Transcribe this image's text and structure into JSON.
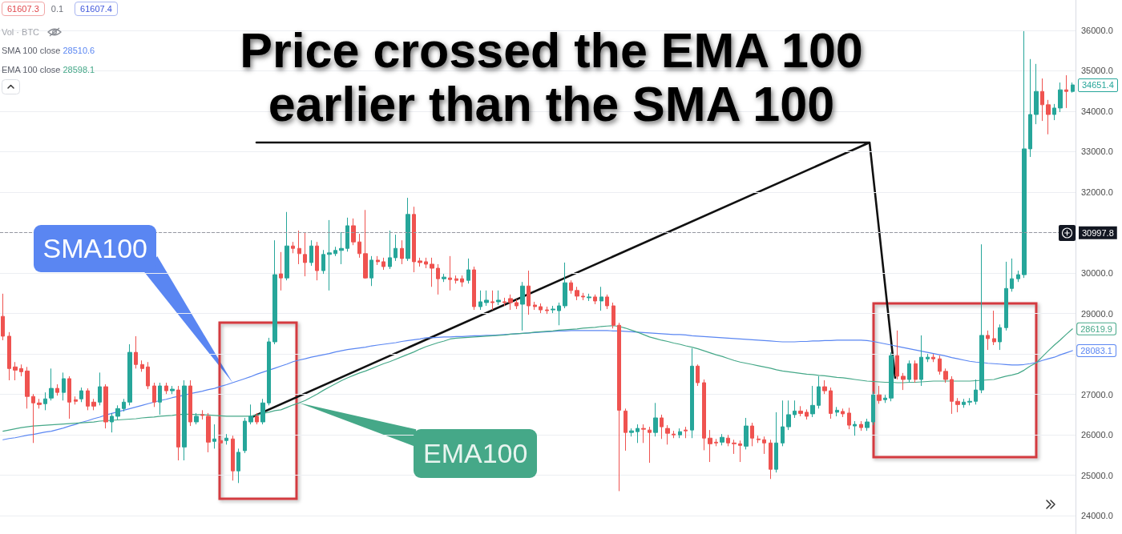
{
  "chart_data": {
    "type": "candlestick",
    "title": "Price crossed the EMA 100 earlier than the SMA 100",
    "categories": [
      null,
      null,
      null,
      null,
      null,
      null,
      null,
      null,
      null,
      null,
      null,
      null,
      null,
      null,
      null,
      null,
      null,
      null,
      null,
      null,
      null,
      null,
      null,
      null,
      null,
      null,
      null,
      null,
      null,
      null,
      null,
      null,
      null,
      null,
      null,
      null,
      null,
      null,
      null,
      null,
      null,
      null,
      null,
      null,
      null,
      null,
      null,
      null,
      null,
      null,
      null,
      null,
      null,
      null,
      null,
      null,
      null,
      null,
      null,
      null,
      null,
      null,
      null,
      null,
      null,
      null,
      null,
      null,
      null,
      null,
      null,
      null,
      null,
      null,
      null,
      null,
      null,
      null,
      null,
      null,
      null,
      null,
      null,
      null,
      null,
      null,
      null,
      null,
      null,
      null,
      null,
      null,
      null,
      null,
      null,
      null,
      null,
      null,
      null,
      null,
      null,
      null,
      null,
      null,
      null,
      null,
      null,
      null,
      null,
      null,
      null,
      null,
      null,
      null,
      null,
      null,
      null,
      null,
      null,
      null,
      null,
      null,
      null,
      null,
      null,
      null,
      null,
      null,
      null,
      null,
      null,
      null,
      null,
      null,
      null,
      null,
      null,
      null,
      null,
      null,
      null,
      null,
      null,
      null,
      null,
      null,
      null,
      null,
      null,
      null,
      null,
      null,
      null,
      null,
      null,
      null,
      null,
      null,
      null,
      null,
      null,
      null,
      null,
      null,
      null,
      null,
      null,
      null,
      null,
      null,
      null,
      null,
      null,
      null,
      null,
      null,
      null,
      null
    ],
    "series": [
      {
        "ohlc": [
          [
            28930,
            29490,
            28340,
            28440
          ],
          [
            28440,
            28540,
            27350,
            27640
          ],
          [
            27680,
            27800,
            27350,
            27600
          ],
          [
            27640,
            27740,
            27450,
            27560
          ],
          [
            27580,
            27680,
            26650,
            26950
          ],
          [
            26950,
            27010,
            25800,
            26790
          ],
          [
            26790,
            26890,
            26650,
            26750
          ],
          [
            26770,
            27050,
            26610,
            26890
          ],
          [
            26910,
            27640,
            26850,
            27150
          ],
          [
            27150,
            27250,
            26970,
            27050
          ],
          [
            27050,
            27540,
            26850,
            27390
          ],
          [
            27390,
            27450,
            26400,
            26810
          ],
          [
            26870,
            26950,
            26750,
            26830
          ],
          [
            26890,
            27170,
            26810,
            27090
          ],
          [
            27090,
            27150,
            26610,
            26710
          ],
          [
            26810,
            26890,
            26610,
            26710
          ],
          [
            26810,
            27540,
            26730,
            27190
          ],
          [
            27190,
            27250,
            26160,
            26320
          ],
          [
            26320,
            26540,
            26060,
            26460
          ],
          [
            26460,
            26730,
            26380,
            26650
          ],
          [
            26650,
            26890,
            26580,
            26810
          ],
          [
            26810,
            28240,
            26730,
            28040
          ],
          [
            28040,
            28440,
            27640,
            27740
          ],
          [
            27740,
            27840,
            27560,
            27640
          ],
          [
            27680,
            27800,
            27130,
            27210
          ],
          [
            27210,
            27290,
            26690,
            26810
          ],
          [
            26810,
            27290,
            26500,
            27210
          ],
          [
            27210,
            27290,
            27010,
            27090
          ],
          [
            27090,
            27210,
            27010,
            27130
          ],
          [
            27110,
            27210,
            25370,
            25700
          ],
          [
            25700,
            27350,
            25370,
            27210
          ],
          [
            27210,
            27350,
            26220,
            26320
          ],
          [
            26320,
            26540,
            26260,
            26460
          ],
          [
            26500,
            26610,
            26380,
            26480
          ],
          [
            26460,
            26540,
            25570,
            25820
          ],
          [
            25840,
            26260,
            25660,
            25900
          ],
          [
            25860,
            25940,
            25660,
            25800
          ],
          [
            25860,
            26020,
            25760,
            25920
          ],
          [
            25900,
            25980,
            24870,
            25110
          ],
          [
            25110,
            25660,
            24810,
            25570
          ],
          [
            25610,
            26420,
            25550,
            26340
          ],
          [
            26320,
            26750,
            26260,
            26460
          ],
          [
            26460,
            26540,
            26260,
            26320
          ],
          [
            26320,
            26890,
            26260,
            26790
          ],
          [
            26790,
            28400,
            26730,
            28300
          ],
          [
            28300,
            30810,
            28240,
            29960
          ],
          [
            29980,
            30520,
            29570,
            29880
          ],
          [
            29880,
            31510,
            29820,
            30670
          ],
          [
            30670,
            30770,
            30490,
            30610
          ],
          [
            30610,
            31050,
            30220,
            30480
          ],
          [
            30460,
            31010,
            29920,
            30260
          ],
          [
            30260,
            30810,
            30180,
            30670
          ],
          [
            30670,
            30770,
            29820,
            30060
          ],
          [
            30060,
            30570,
            29980,
            30460
          ],
          [
            30460,
            31310,
            29570,
            30500
          ],
          [
            30480,
            30650,
            30420,
            30560
          ],
          [
            30560,
            31010,
            30220,
            30610
          ],
          [
            30610,
            31370,
            30530,
            31170
          ],
          [
            31170,
            31350,
            30690,
            30770
          ],
          [
            30770,
            30970,
            30380,
            30480
          ],
          [
            30480,
            31560,
            29860,
            29880
          ],
          [
            29880,
            30420,
            29680,
            30320
          ],
          [
            30320,
            30420,
            30200,
            30280
          ],
          [
            30280,
            30380,
            30080,
            30160
          ],
          [
            30160,
            31050,
            30100,
            30380
          ],
          [
            30380,
            30950,
            30300,
            30610
          ],
          [
            30610,
            30810,
            30220,
            30360
          ],
          [
            30360,
            31860,
            30300,
            31450
          ],
          [
            31450,
            31640,
            30020,
            30280
          ],
          [
            30300,
            30380,
            30160,
            30260
          ],
          [
            30280,
            30380,
            30120,
            30220
          ],
          [
            30220,
            30380,
            29660,
            30120
          ],
          [
            30120,
            30220,
            29470,
            29860
          ],
          [
            29860,
            29980,
            29780,
            29900
          ],
          [
            29880,
            30420,
            29570,
            29840
          ],
          [
            29860,
            29940,
            29740,
            29820
          ],
          [
            29860,
            29940,
            29660,
            29780
          ],
          [
            29820,
            30360,
            29740,
            30080
          ],
          [
            30080,
            30160,
            29090,
            29170
          ],
          [
            29170,
            29570,
            29090,
            29290
          ],
          [
            29270,
            29570,
            29190,
            29330
          ],
          [
            29290,
            29570,
            29090,
            29270
          ],
          [
            29290,
            29570,
            29210,
            29330
          ],
          [
            29290,
            29390,
            29190,
            29270
          ],
          [
            29370,
            29470,
            29090,
            29270
          ],
          [
            29270,
            29350,
            29110,
            29190
          ],
          [
            29230,
            29780,
            28580,
            29680
          ],
          [
            29680,
            30060,
            28970,
            29190
          ],
          [
            29210,
            29290,
            29090,
            29170
          ],
          [
            29170,
            29250,
            29010,
            29090
          ],
          [
            29090,
            29170,
            28990,
            29070
          ],
          [
            29090,
            29190,
            29010,
            29110
          ],
          [
            29070,
            29270,
            28710,
            29190
          ],
          [
            29190,
            30260,
            29130,
            29760
          ],
          [
            29760,
            29820,
            29490,
            29570
          ],
          [
            29570,
            29660,
            29330,
            29430
          ],
          [
            29430,
            29510,
            29330,
            29410
          ],
          [
            29390,
            29490,
            29310,
            29410
          ],
          [
            29410,
            29470,
            29230,
            29310
          ],
          [
            29310,
            29660,
            29070,
            29410
          ],
          [
            29410,
            29470,
            29110,
            29190
          ],
          [
            29190,
            29270,
            28630,
            28710
          ],
          [
            28710,
            28770,
            24610,
            26610
          ],
          [
            26590,
            26650,
            25610,
            26060
          ],
          [
            26060,
            26160,
            25960,
            26100
          ],
          [
            26080,
            26260,
            25800,
            26160
          ],
          [
            26160,
            26260,
            25800,
            26140
          ],
          [
            26120,
            26200,
            25310,
            26060
          ],
          [
            26060,
            26790,
            25960,
            26420
          ],
          [
            26420,
            26500,
            25900,
            26200
          ],
          [
            26160,
            26240,
            25760,
            26040
          ],
          [
            26020,
            26100,
            25920,
            26000
          ],
          [
            26000,
            26160,
            25920,
            26080
          ],
          [
            26120,
            26200,
            25920,
            26100
          ],
          [
            26120,
            28140,
            25920,
            27700
          ],
          [
            27700,
            27740,
            27210,
            27290
          ],
          [
            27290,
            27370,
            25620,
            25920
          ],
          [
            25920,
            26120,
            25330,
            25780
          ],
          [
            25820,
            25900,
            25720,
            25800
          ],
          [
            25820,
            26020,
            25740,
            25940
          ],
          [
            25920,
            26000,
            25720,
            25800
          ],
          [
            25800,
            25880,
            25530,
            25780
          ],
          [
            25780,
            25860,
            25330,
            25740
          ],
          [
            25720,
            26420,
            25640,
            26220
          ],
          [
            26220,
            26300,
            25720,
            25920
          ],
          [
            25900,
            25980,
            25800,
            25880
          ],
          [
            25880,
            25960,
            25530,
            25800
          ],
          [
            25800,
            25880,
            24910,
            25150
          ],
          [
            25150,
            26560,
            25070,
            25800
          ],
          [
            25800,
            26850,
            25720,
            26200
          ],
          [
            26200,
            26850,
            26120,
            26500
          ],
          [
            26500,
            26850,
            26420,
            26590
          ],
          [
            26590,
            26710,
            26460,
            26530
          ],
          [
            26560,
            26630,
            26380,
            26460
          ],
          [
            26520,
            27210,
            26440,
            26730
          ],
          [
            26730,
            27450,
            26650,
            27190
          ],
          [
            27190,
            27350,
            27010,
            27090
          ],
          [
            27090,
            27170,
            26400,
            26530
          ],
          [
            26560,
            26690,
            26460,
            26610
          ],
          [
            26580,
            26650,
            26440,
            26520
          ],
          [
            26540,
            26670,
            26140,
            26240
          ],
          [
            26220,
            26340,
            25980,
            26260
          ],
          [
            26260,
            26340,
            26100,
            26180
          ],
          [
            26180,
            26400,
            26100,
            26320
          ],
          [
            26320,
            27070,
            26240,
            26990
          ],
          [
            26990,
            27210,
            26770,
            26850
          ],
          [
            26870,
            26990,
            26790,
            26910
          ],
          [
            26910,
            28040,
            26830,
            27960
          ],
          [
            27960,
            28580,
            27370,
            27450
          ],
          [
            27450,
            27530,
            27110,
            27370
          ],
          [
            27370,
            27840,
            27290,
            27760
          ],
          [
            27760,
            27840,
            27290,
            27370
          ],
          [
            27370,
            28460,
            27210,
            27920
          ],
          [
            27880,
            28000,
            27800,
            27920
          ],
          [
            27920,
            28000,
            27800,
            27880
          ],
          [
            27880,
            27960,
            27490,
            27570
          ],
          [
            27570,
            27640,
            27290,
            27370
          ],
          [
            27370,
            27450,
            26520,
            26830
          ],
          [
            26830,
            26910,
            26560,
            26750
          ],
          [
            26750,
            26890,
            26670,
            26810
          ],
          [
            26810,
            26910,
            26730,
            26830
          ],
          [
            26830,
            27370,
            26750,
            27110
          ],
          [
            27110,
            30710,
            27030,
            28460
          ],
          [
            28460,
            28580,
            28100,
            28380
          ],
          [
            28380,
            29070,
            28220,
            28300
          ],
          [
            28300,
            28730,
            28100,
            28650
          ],
          [
            28650,
            30280,
            28580,
            29620
          ],
          [
            29620,
            30360,
            29540,
            29860
          ],
          [
            29860,
            30060,
            29780,
            29960
          ],
          [
            29960,
            35980,
            29880,
            33070
          ],
          [
            33070,
            35290,
            32870,
            33920
          ],
          [
            33920,
            35170,
            33680,
            34490
          ],
          [
            34490,
            34810,
            33760,
            34160
          ],
          [
            34160,
            34280,
            33430,
            33920
          ],
          [
            33920,
            34180,
            33780,
            34080
          ],
          [
            34080,
            34710,
            33980,
            34530
          ],
          [
            34530,
            34890,
            34080,
            34490
          ],
          [
            34490,
            34710,
            34460,
            34651.4
          ]
        ],
        "colors": [
          "#ef5350",
          "#ef5350",
          "#ef5350",
          "#ef5350",
          "#ef5350",
          "#ef5350",
          "#ef5350",
          "#26a69a",
          "#26a69a",
          "#ef5350",
          "#26a69a",
          "#ef5350",
          "#ef5350",
          "#26a69a",
          "#ef5350",
          "#ef5350",
          "#26a69a",
          "#ef5350",
          "#26a69a",
          "#26a69a",
          "#26a69a",
          "#26a69a",
          "#ef5350",
          "#ef5350",
          "#ef5350",
          "#ef5350",
          "#26a69a",
          "#ef5350",
          "#26a69a",
          "#ef5350",
          "#26a69a",
          "#ef5350",
          "#26a69a",
          "#ef5350",
          "#ef5350",
          "#26a69a",
          "#ef5350",
          "#26a69a",
          "#ef5350",
          "#26a69a",
          "#26a69a",
          "#26a69a",
          "#ef5350",
          "#26a69a",
          "#26a69a",
          "#26a69a",
          "#ef5350",
          "#26a69a",
          "#ef5350",
          "#ef5350",
          "#ef5350",
          "#26a69a",
          "#ef5350",
          "#26a69a",
          "#26a69a",
          "#26a69a",
          "#26a69a",
          "#26a69a",
          "#ef5350",
          "#ef5350",
          "#ef5350",
          "#26a69a",
          "#ef5350",
          "#ef5350",
          "#26a69a",
          "#26a69a",
          "#ef5350",
          "#26a69a",
          "#ef5350",
          "#ef5350",
          "#ef5350",
          "#ef5350",
          "#ef5350",
          "#26a69a",
          "#ef5350",
          "#ef5350",
          "#ef5350",
          "#26a69a",
          "#ef5350",
          "#26a69a",
          "#26a69a",
          "#ef5350",
          "#26a69a",
          "#ef5350",
          "#ef5350",
          "#ef5350",
          "#26a69a",
          "#ef5350",
          "#ef5350",
          "#ef5350",
          "#ef5350",
          "#26a69a",
          "#26a69a",
          "#26a69a",
          "#ef5350",
          "#ef5350",
          "#ef5350",
          "#26a69a",
          "#ef5350",
          "#26a69a",
          "#ef5350",
          "#ef5350",
          "#ef5350",
          "#ef5350",
          "#26a69a",
          "#26a69a",
          "#ef5350",
          "#ef5350",
          "#26a69a",
          "#ef5350",
          "#ef5350",
          "#ef5350",
          "#26a69a",
          "#ef5350",
          "#26a69a",
          "#ef5350",
          "#ef5350",
          "#ef5350",
          "#ef5350",
          "#26a69a",
          "#ef5350",
          "#ef5350",
          "#ef5350",
          "#26a69a",
          "#ef5350",
          "#ef5350",
          "#ef5350",
          "#ef5350",
          "#26a69a",
          "#26a69a",
          "#26a69a",
          "#26a69a",
          "#ef5350",
          "#ef5350",
          "#26a69a",
          "#26a69a",
          "#ef5350",
          "#ef5350",
          "#26a69a",
          "#ef5350",
          "#ef5350",
          "#26a69a",
          "#ef5350",
          "#26a69a",
          "#26a69a",
          "#ef5350",
          "#26a69a",
          "#26a69a",
          "#ef5350",
          "#ef5350",
          "#26a69a",
          "#ef5350",
          "#26a69a",
          "#26a69a",
          "#ef5350",
          "#ef5350",
          "#ef5350",
          "#ef5350",
          "#ef5350",
          "#26a69a",
          "#26a69a",
          "#26a69a",
          "#26a69a",
          "#ef5350",
          "#ef5350",
          "#26a69a",
          "#26a69a",
          "#26a69a",
          "#26a69a",
          "#26a69a",
          "#26a69a",
          "#26a69a",
          "#ef5350",
          "#ef5350",
          "#26a69a",
          "#26a69a",
          "#ef5350",
          "#26a69a"
        ]
      },
      {
        "type": "line",
        "name": "SMA100",
        "color": "#5a86f2",
        "values": [
          25880,
          25910,
          25930,
          25960,
          25990,
          26010,
          26040,
          26070,
          26090,
          26130,
          26170,
          26220,
          26260,
          26310,
          26350,
          26400,
          26440,
          26490,
          26530,
          26570,
          26610,
          26650,
          26690,
          26730,
          26770,
          26810,
          26850,
          26880,
          26920,
          26950,
          26980,
          27020,
          27050,
          27080,
          27120,
          27150,
          27200,
          27240,
          27290,
          27340,
          27390,
          27440,
          27500,
          27550,
          27600,
          27650,
          27700,
          27750,
          27810,
          27850,
          27880,
          27920,
          27950,
          27980,
          28010,
          28050,
          28080,
          28110,
          28130,
          28150,
          28170,
          28200,
          28220,
          28240,
          28260,
          28280,
          28310,
          28330,
          28350,
          28370,
          28400,
          28400,
          28410,
          28420,
          28420,
          28430,
          28430,
          28440,
          28450,
          28450,
          28460,
          28460,
          28470,
          28480,
          28490,
          28500,
          28510,
          28520,
          28530,
          28540,
          28550,
          28560,
          28570,
          28570,
          28580,
          28580,
          28580,
          28580,
          28580,
          28580,
          28580,
          28570,
          28570,
          28560,
          28550,
          28540,
          28530,
          28520,
          28510,
          28500,
          28490,
          28480,
          28480,
          28470,
          28450,
          28440,
          28430,
          28420,
          28410,
          28400,
          28390,
          28380,
          28370,
          28360,
          28350,
          28340,
          28330,
          28320,
          28310,
          28300,
          28300,
          28300,
          28310,
          28310,
          28320,
          28320,
          28330,
          28330,
          28340,
          28340,
          28340,
          28340,
          28340,
          28330,
          28310,
          28280,
          28250,
          28220,
          28190,
          28160,
          28130,
          28100,
          28070,
          28040,
          28010,
          27980,
          27950,
          27910,
          27880,
          27850,
          27820,
          27800,
          27790,
          27770,
          27760,
          27750,
          27740,
          27730,
          27730,
          27740,
          27760,
          27790,
          27840,
          27880,
          27920,
          27980,
          28030,
          28083.1
        ],
        "value_labels": [
          null,
          null,
          null,
          null,
          null,
          null,
          null,
          null,
          null,
          null,
          null,
          null,
          null,
          null,
          null,
          null,
          null,
          null,
          null,
          null,
          null,
          null,
          null,
          null,
          null,
          null,
          null,
          null,
          null,
          null,
          null,
          null,
          null,
          null,
          null,
          null,
          null,
          null,
          null,
          null,
          null,
          null,
          null,
          null,
          null,
          null,
          null,
          null,
          null,
          null,
          null,
          null,
          null,
          null,
          null,
          null,
          null,
          null,
          null,
          null,
          null,
          null,
          null,
          null,
          null,
          null,
          null,
          null,
          null,
          null,
          null,
          null,
          null,
          null,
          null,
          null,
          null,
          null,
          null,
          null,
          null,
          null,
          null,
          null,
          null,
          null,
          null,
          null,
          null,
          null,
          null,
          null,
          null,
          null,
          null,
          null,
          null,
          null,
          null,
          null,
          null,
          null,
          null,
          null,
          null,
          null,
          null,
          null,
          null,
          null,
          null,
          null,
          null,
          null,
          null,
          null,
          null,
          null,
          null,
          null,
          null,
          null,
          null,
          null,
          null,
          null,
          null,
          null,
          null,
          null,
          null,
          null,
          null,
          null,
          null,
          null,
          null,
          null,
          null,
          null,
          null,
          null,
          null,
          null,
          null,
          null,
          null,
          null,
          null,
          null,
          null,
          null,
          null,
          null,
          null,
          null,
          null,
          null,
          null,
          null,
          null,
          null,
          null,
          null,
          null,
          null,
          null,
          null,
          null,
          null,
          null,
          null,
          null,
          null,
          null,
          null,
          null,
          "28083.1"
        ]
      },
      {
        "type": "line",
        "name": "EMA100",
        "color": "#45a888",
        "values": [
          26090,
          26120,
          26150,
          26180,
          26200,
          26220,
          26230,
          26240,
          26250,
          26260,
          26270,
          26280,
          26290,
          26300,
          26310,
          26320,
          26340,
          26350,
          26360,
          26370,
          26380,
          26390,
          26400,
          26420,
          26430,
          26440,
          26460,
          26470,
          26480,
          26500,
          26510,
          26510,
          26500,
          26500,
          26490,
          26480,
          26470,
          26460,
          26460,
          26460,
          26460,
          26460,
          26490,
          26530,
          26560,
          26600,
          26620,
          26680,
          26740,
          26790,
          26850,
          26930,
          27010,
          27100,
          27180,
          27260,
          27340,
          27410,
          27470,
          27530,
          27580,
          27640,
          27700,
          27760,
          27810,
          27870,
          27930,
          27990,
          28050,
          28120,
          28180,
          28230,
          28280,
          28320,
          28370,
          28390,
          28400,
          28410,
          28420,
          28430,
          28440,
          28450,
          28460,
          28470,
          28490,
          28500,
          28510,
          28520,
          28540,
          28550,
          28560,
          28570,
          28590,
          28600,
          28610,
          28620,
          28640,
          28650,
          28660,
          28680,
          28690,
          28700,
          28680,
          28640,
          28590,
          28540,
          28480,
          28420,
          28380,
          28340,
          28310,
          28270,
          28240,
          28200,
          28170,
          28130,
          28080,
          28030,
          27980,
          27940,
          27890,
          27840,
          27800,
          27770,
          27740,
          27710,
          27680,
          27650,
          27610,
          27580,
          27560,
          27540,
          27520,
          27500,
          27490,
          27470,
          27460,
          27440,
          27420,
          27410,
          27390,
          27370,
          27350,
          27330,
          27320,
          27310,
          27300,
          27300,
          27290,
          27290,
          27300,
          27300,
          27310,
          27320,
          27330,
          27330,
          27330,
          27330,
          27330,
          27330,
          27330,
          27340,
          27350,
          27360,
          27370,
          27410,
          27450,
          27480,
          27520,
          27600,
          27700,
          27780,
          27930,
          28080,
          28220,
          28350,
          28490,
          28619.9
        ],
        "value_labels": [
          null,
          null,
          null,
          null,
          null,
          null,
          null,
          null,
          null,
          null,
          null,
          null,
          null,
          null,
          null,
          null,
          null,
          null,
          null,
          null,
          null,
          null,
          null,
          null,
          null,
          null,
          null,
          null,
          null,
          null,
          null,
          null,
          null,
          null,
          null,
          null,
          null,
          null,
          null,
          null,
          null,
          null,
          null,
          null,
          null,
          null,
          null,
          null,
          null,
          null,
          null,
          null,
          null,
          null,
          null,
          null,
          null,
          null,
          null,
          null,
          null,
          null,
          null,
          null,
          null,
          null,
          null,
          null,
          null,
          null,
          null,
          null,
          null,
          null,
          null,
          null,
          null,
          null,
          null,
          null,
          null,
          null,
          null,
          null,
          null,
          null,
          null,
          null,
          null,
          null,
          null,
          null,
          null,
          null,
          null,
          null,
          null,
          null,
          null,
          null,
          null,
          null,
          null,
          null,
          null,
          null,
          null,
          null,
          null,
          null,
          null,
          null,
          null,
          null,
          null,
          null,
          null,
          null,
          null,
          null,
          null,
          null,
          null,
          null,
          null,
          null,
          null,
          null,
          null,
          null,
          null,
          null,
          null,
          null,
          null,
          null,
          null,
          null,
          null,
          null,
          null,
          null,
          null,
          null,
          null,
          null,
          null,
          null,
          null,
          null,
          null,
          null,
          null,
          null,
          null,
          null,
          null,
          null,
          null,
          null,
          null,
          null,
          null,
          null,
          null,
          null,
          null,
          null,
          null,
          null,
          null,
          null,
          null,
          null,
          null,
          null,
          null,
          "28619.9"
        ]
      }
    ],
    "ylim": [
      23550,
      36750
    ],
    "yticks": [
      {
        "value": 24000,
        "label": "24000.0"
      },
      {
        "value": 25000,
        "label": "25000.0"
      },
      {
        "value": 26000,
        "label": "26000.0"
      },
      {
        "value": 27000,
        "label": "27000.0"
      },
      {
        "value": 28000,
        "label": null
      },
      {
        "value": 29000,
        "label": "29000.0"
      },
      {
        "value": 30000,
        "label": "30000.0"
      },
      {
        "value": 31000,
        "label": null
      },
      {
        "value": 32000,
        "label": "32000.0"
      },
      {
        "value": 33000,
        "label": "33000.0"
      },
      {
        "value": 34000,
        "label": "34000.0"
      },
      {
        "value": 35000,
        "label": "35000.0"
      },
      {
        "value": 36000,
        "label": "36000.0"
      }
    ],
    "tick_labels": "y",
    "grid": "y",
    "marker": "none",
    "ref_lines": [
      {
        "axis": "y",
        "value": 30997.8,
        "label": "30997.8",
        "line_style": "dashed",
        "color": "#9598a1"
      }
    ],
    "annotations": [
      "61607.3",
      "0.1",
      "61607.4",
      "Vol · BTC",
      "SMA 100 close 28510.6",
      "EMA 100 close 28598.1",
      "34651.4"
    ]
  }
}
